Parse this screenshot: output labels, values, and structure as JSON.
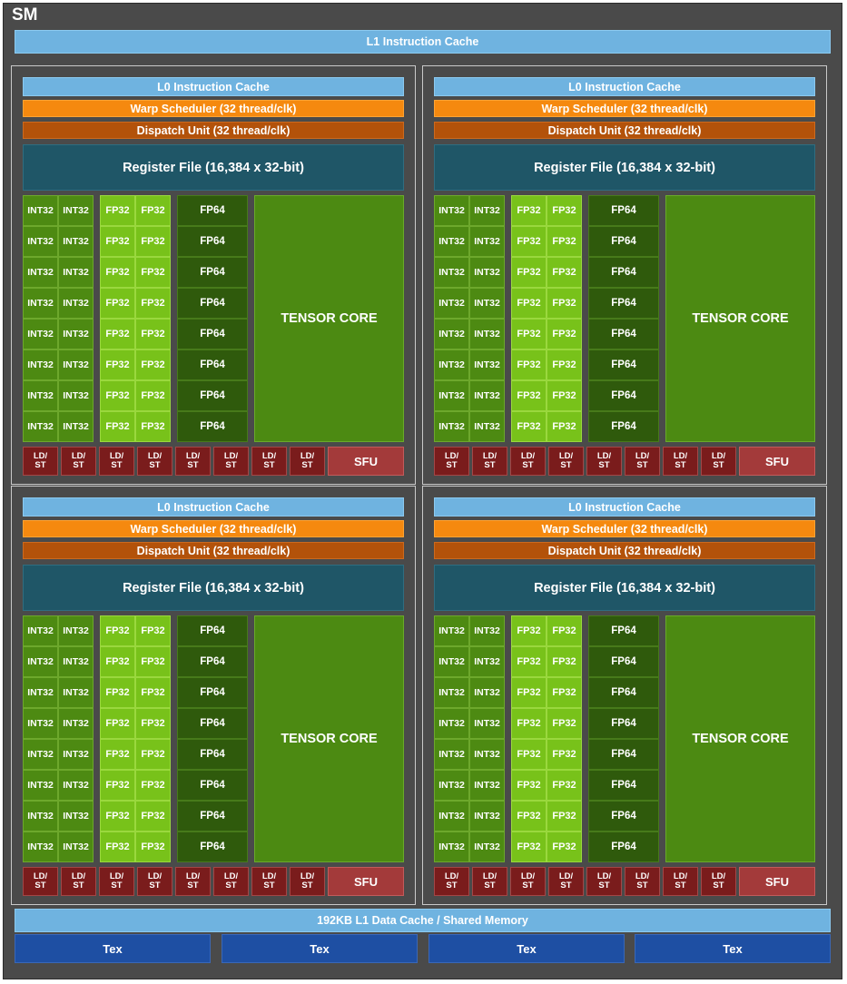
{
  "sm_label": "SM",
  "l1_instruction_cache": "L1 Instruction Cache",
  "partition": {
    "l0_cache": "L0 Instruction Cache",
    "warp_scheduler": "Warp Scheduler (32 thread/clk)",
    "dispatch_unit": "Dispatch Unit (32 thread/clk)",
    "register_file": "Register File (16,384 x 32-bit)",
    "int32": "INT32",
    "fp32": "FP32",
    "fp64": "FP64",
    "tensor_core": "TENSOR CORE",
    "ldst_line1": "LD/",
    "ldst_line2": "ST",
    "sfu": "SFU"
  },
  "l1_data_cache": "192KB L1 Data Cache / Shared Memory",
  "tex_units": [
    "Tex",
    "Tex",
    "Tex",
    "Tex"
  ],
  "colors": {
    "cache": "#6fb3e0",
    "warp_scheduler": "#f5890f",
    "dispatch_unit": "#b3520a",
    "register_file": "#1f5667",
    "int32": "#4d8a12",
    "fp32": "#78c21a",
    "fp64": "#2f5a0c",
    "tensor_core": "#4c8a12",
    "ldst": "#7a1c1c",
    "sfu": "#a33a3a",
    "tex": "#1e4fa3"
  }
}
